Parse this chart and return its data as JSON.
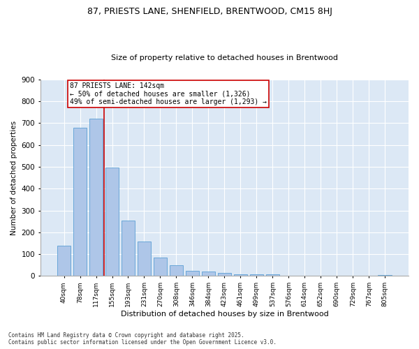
{
  "title1": "87, PRIESTS LANE, SHENFIELD, BRENTWOOD, CM15 8HJ",
  "title2": "Size of property relative to detached houses in Brentwood",
  "xlabel": "Distribution of detached houses by size in Brentwood",
  "ylabel": "Number of detached properties",
  "categories": [
    "40sqm",
    "78sqm",
    "117sqm",
    "155sqm",
    "193sqm",
    "231sqm",
    "270sqm",
    "308sqm",
    "346sqm",
    "384sqm",
    "423sqm",
    "461sqm",
    "499sqm",
    "537sqm",
    "576sqm",
    "614sqm",
    "652sqm",
    "690sqm",
    "729sqm",
    "767sqm",
    "805sqm"
  ],
  "values": [
    140,
    678,
    720,
    497,
    253,
    157,
    86,
    50,
    25,
    20,
    14,
    9,
    9,
    8,
    2,
    2,
    1,
    1,
    0,
    0,
    5
  ],
  "bar_color": "#aec6e8",
  "bar_edge_color": "#5a9fd4",
  "vline_x_index": 2.5,
  "vline_color": "#cc0000",
  "annotation_text": "87 PRIESTS LANE: 142sqm\n← 50% of detached houses are smaller (1,326)\n49% of semi-detached houses are larger (1,293) →",
  "annotation_box_color": "#ffffff",
  "annotation_box_edge": "#cc0000",
  "footnote": "Contains HM Land Registry data © Crown copyright and database right 2025.\nContains public sector information licensed under the Open Government Licence v3.0.",
  "fig_background_color": "#ffffff",
  "ax_background_color": "#dce8f5",
  "ylim": [
    0,
    900
  ],
  "yticks": [
    0,
    100,
    200,
    300,
    400,
    500,
    600,
    700,
    800,
    900
  ]
}
